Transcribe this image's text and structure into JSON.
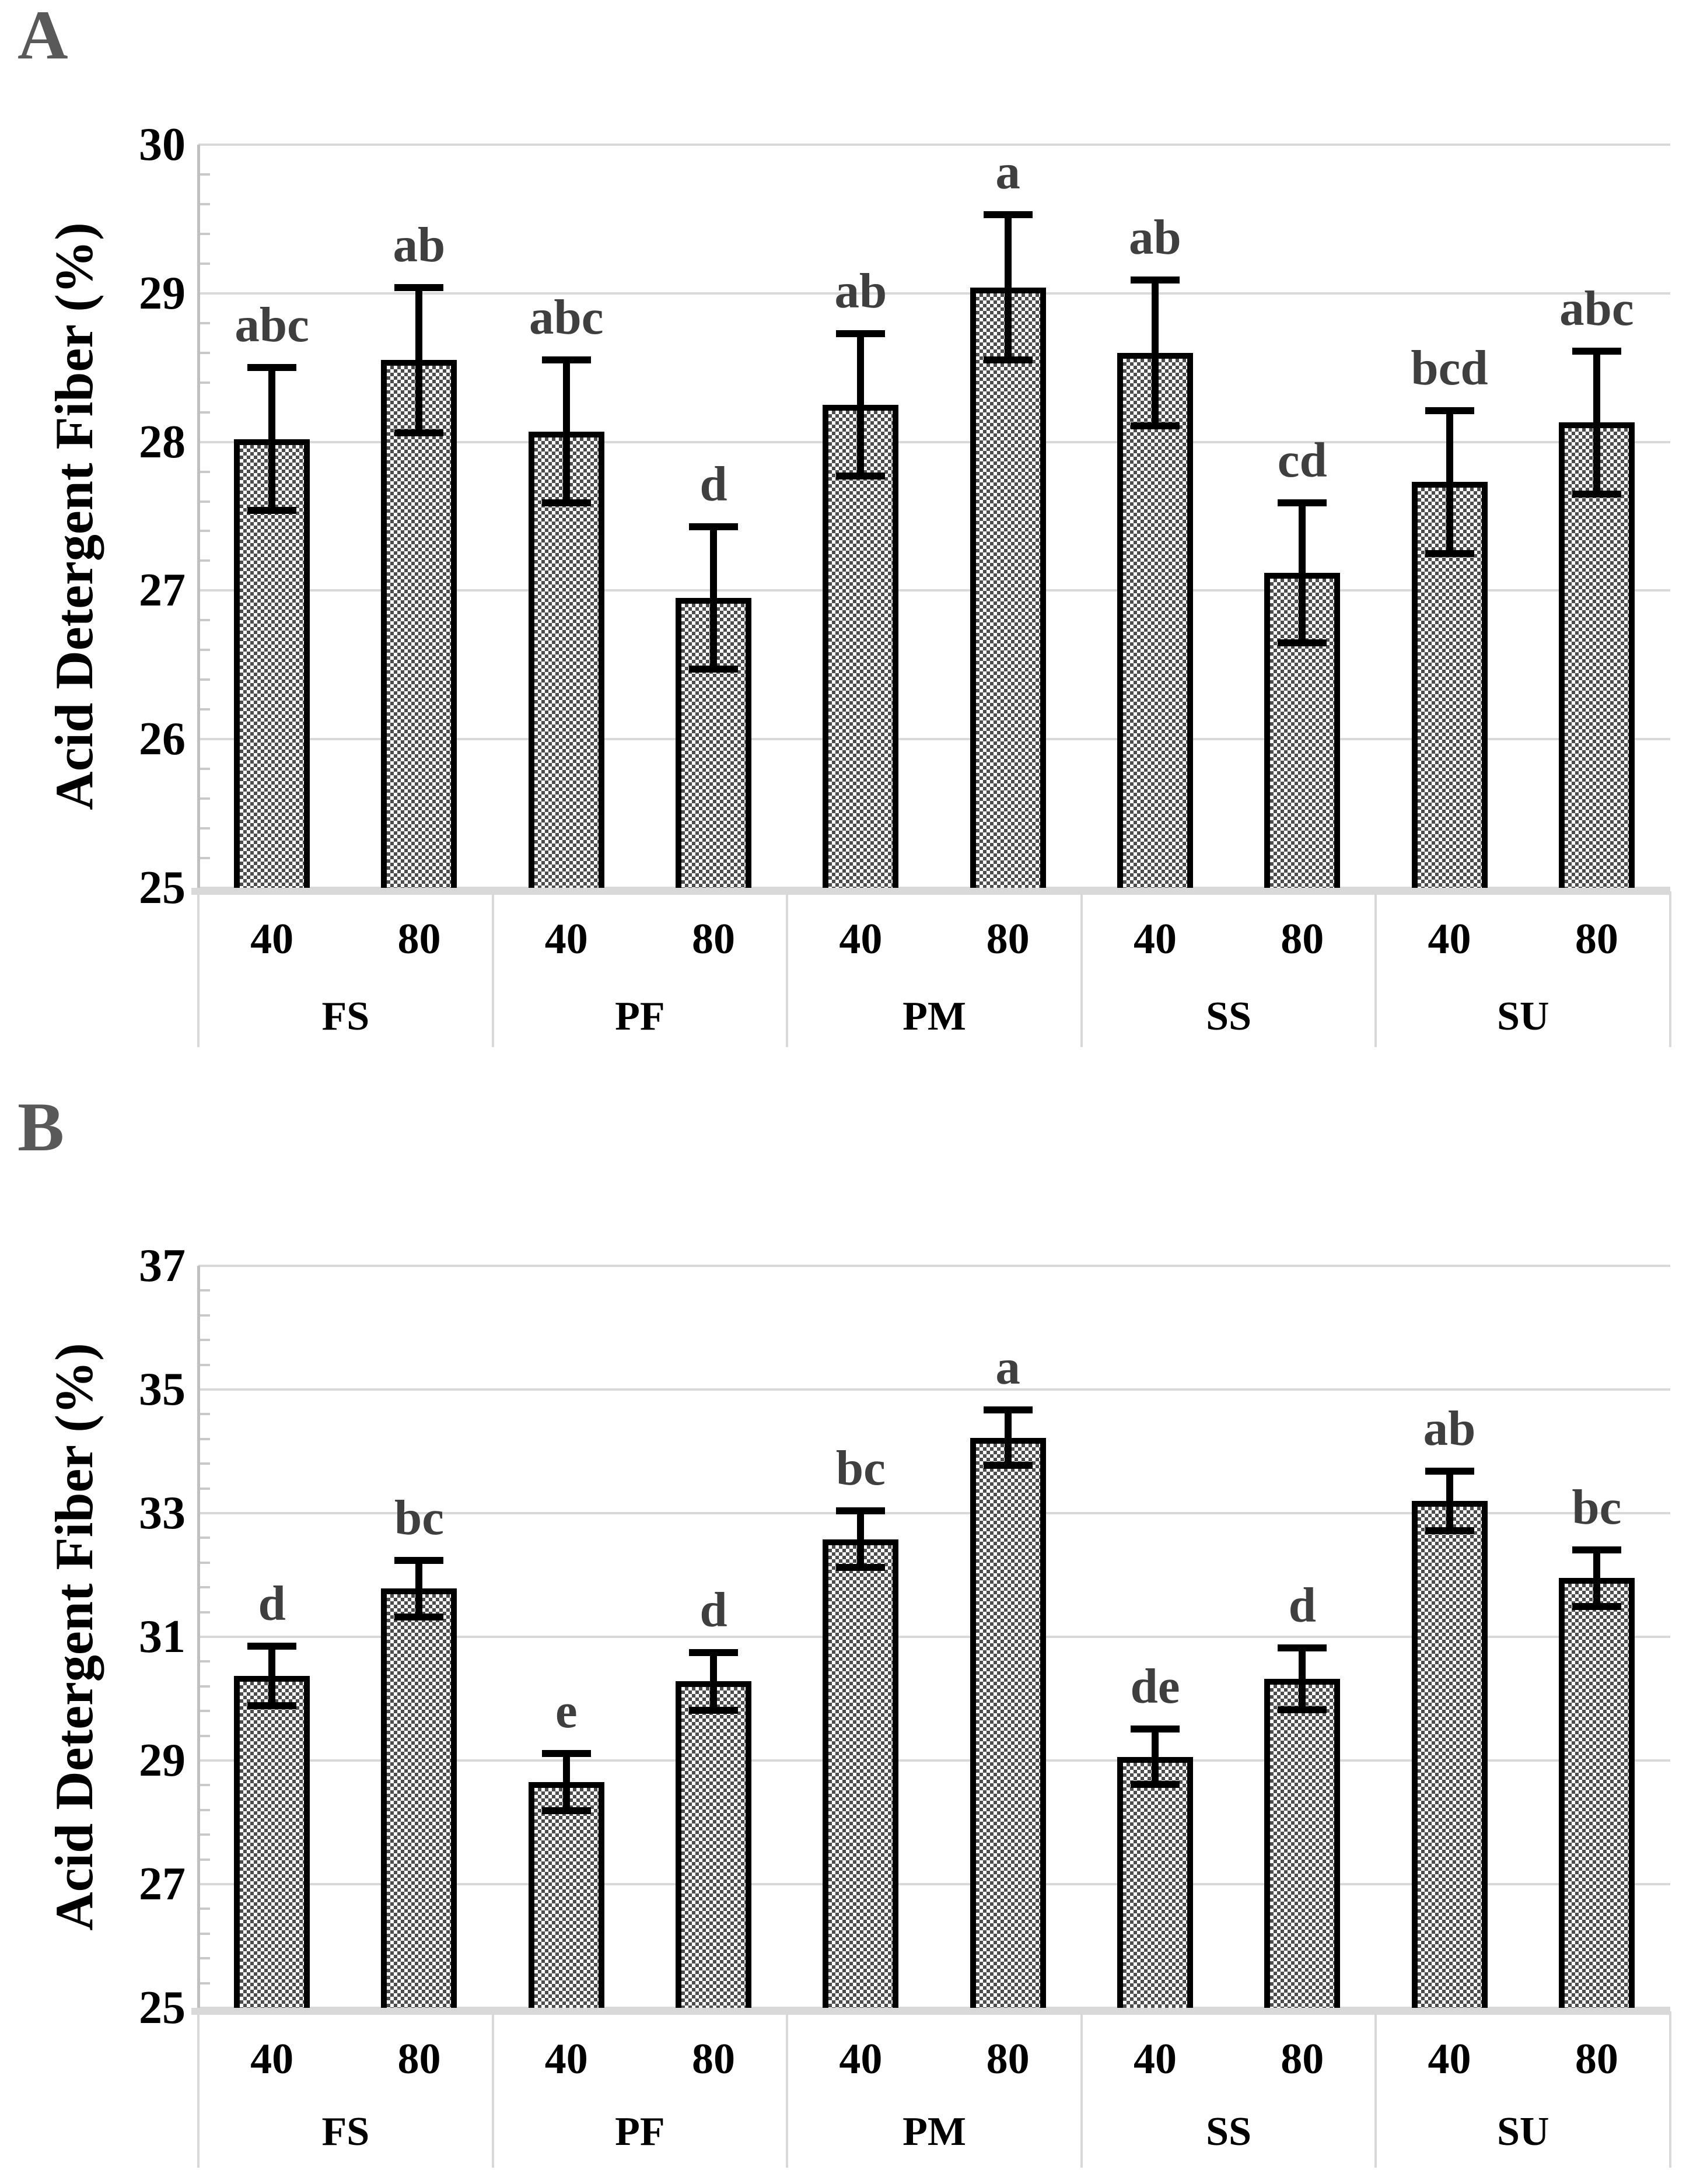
{
  "figure_title": "",
  "colors": {
    "bar_pattern": "#4d4d4d",
    "bar_border": "#000000",
    "gridline": "#d9d9d9",
    "axis_line": "#c0c0c0",
    "sig_letter": "#3f3f3f",
    "panel_label": "#595959",
    "text": "#000000",
    "background": "#ffffff"
  },
  "chart_data": [
    {
      "type": "bar",
      "panel_label": "A",
      "title": "",
      "xlabel": "",
      "ylabel": "Acid Detergent Fiber (%)",
      "ylim": [
        25,
        30
      ],
      "yticks": [
        25,
        26,
        27,
        28,
        29,
        30
      ],
      "minor_tick_step": 0.2,
      "grid": "horizontal-major-on",
      "legend_position": "none",
      "bar_fill": "checkerboard-pattern",
      "group_labels": [
        "FS",
        "PF",
        "PM",
        "SS",
        "SU"
      ],
      "bar_labels": [
        "40",
        "80",
        "40",
        "80",
        "40",
        "80",
        "40",
        "80",
        "40",
        "80"
      ],
      "categories": [
        "FS 40",
        "FS 80",
        "PF 40",
        "PF 80",
        "PM 40",
        "PM 80",
        "SS 40",
        "SS 80",
        "SU 40",
        "SU 80"
      ],
      "values": [
        28.02,
        28.55,
        28.07,
        26.95,
        28.25,
        29.04,
        28.6,
        27.12,
        27.73,
        28.13
      ],
      "error_bars": [
        0.48,
        0.49,
        0.48,
        0.48,
        0.48,
        0.49,
        0.49,
        0.47,
        0.48,
        0.48
      ],
      "sig_letters": [
        "abc",
        "ab",
        "abc",
        "d",
        "ab",
        "a",
        "ab",
        "cd",
        "bcd",
        "abc"
      ]
    },
    {
      "type": "bar",
      "panel_label": "B",
      "title": "",
      "xlabel": "",
      "ylabel": "Acid Detergent Fiber (%)",
      "ylim": [
        25,
        37
      ],
      "yticks": [
        25,
        27,
        29,
        31,
        33,
        35,
        37
      ],
      "minor_tick_step": 0.4,
      "grid": "horizontal-major-on",
      "legend_position": "none",
      "bar_fill": "checkerboard-pattern",
      "group_labels": [
        "FS",
        "PF",
        "PM",
        "SS",
        "SU"
      ],
      "bar_labels": [
        "40",
        "80",
        "40",
        "80",
        "40",
        "80",
        "40",
        "80",
        "40",
        "80"
      ],
      "categories": [
        "FS 40",
        "FS 80",
        "PF 40",
        "PF 80",
        "PM 40",
        "PM 80",
        "SS 40",
        "SS 80",
        "SU 40",
        "SU 80"
      ],
      "values": [
        30.37,
        31.78,
        28.65,
        30.28,
        32.58,
        34.22,
        29.06,
        30.32,
        33.2,
        31.95
      ],
      "error_bars": [
        0.48,
        0.46,
        0.46,
        0.47,
        0.46,
        0.45,
        0.45,
        0.5,
        0.48,
        0.46
      ],
      "sig_letters": [
        "d",
        "bc",
        "e",
        "d",
        "bc",
        "a",
        "de",
        "d",
        "ab",
        "bc"
      ]
    }
  ]
}
